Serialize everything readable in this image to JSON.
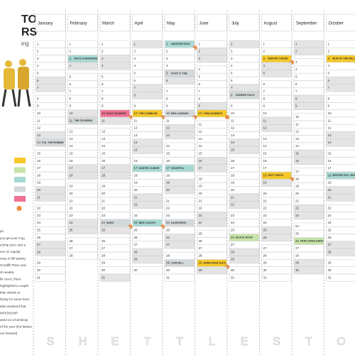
{
  "left_panel": {
    "title_lines": [
      "TON",
      "RS"
    ],
    "subtitle": "ing",
    "legend": [
      {
        "color": "#f6c828"
      },
      {
        "color": "#c6e4a8"
      },
      {
        "color": "#a8d8d2"
      },
      {
        "color": "#d3d8db"
      },
      {
        "color": "#f07292"
      },
      {
        "color": "#ef8a3c",
        "dot": true
      }
    ],
    "notes": [
      "ps",
      "you get your mug",
      "ership your card a",
      "ven on regular",
      "easy to bill paying",
      "Goodfill Place and",
      "sh weekly",
      "lle races, there",
      "highlighted a couple",
      "their details at",
      "family for some hard",
      "able weekend that",
      "MPIONSHIP",
      "ased on a handicap",
      "of the year (the fastest",
      "our forward)"
    ]
  },
  "months": [
    {
      "name": "January",
      "letter": "S",
      "days": [
        1,
        2,
        3,
        4,
        5,
        6,
        7,
        8,
        9,
        10,
        11,
        12,
        13,
        14,
        15,
        16,
        17,
        18,
        19,
        20,
        21,
        22,
        23,
        24,
        25,
        26,
        27,
        28,
        29,
        30,
        31
      ],
      "weekends": [
        6,
        7,
        13,
        14,
        20,
        21,
        27,
        28
      ],
      "events": [
        {
          "day": 14,
          "label": "FOL THE ROBBIN",
          "color": "#d3d8db"
        }
      ]
    },
    {
      "name": "February",
      "letter": "H",
      "days": [
        1,
        2,
        3,
        4,
        5,
        6,
        7,
        8,
        9,
        10,
        11,
        12,
        13,
        14,
        15,
        16,
        17,
        18,
        19,
        20,
        21,
        22,
        23,
        24,
        25,
        26,
        27,
        28
      ],
      "weekends": [
        3,
        4,
        10,
        11,
        17,
        18,
        24,
        25
      ],
      "events": [
        {
          "day": 3,
          "label": "DEVIL'S BURDENS",
          "color": "#a8d8d2"
        },
        {
          "day": 11,
          "label": "THE CELEBRA",
          "color": "#d3d8db"
        }
      ]
    },
    {
      "name": "March",
      "letter": "E",
      "days": [
        1,
        2,
        3,
        4,
        5,
        6,
        7,
        8,
        9,
        10,
        11,
        12,
        13,
        14,
        15,
        16,
        17,
        18,
        19,
        20,
        21,
        22,
        23,
        24,
        25,
        26,
        27,
        28,
        29,
        30,
        31
      ],
      "weekends": [
        3,
        4,
        10,
        11,
        17,
        18,
        24,
        25,
        31
      ],
      "events": [
        {
          "day": 10,
          "label": "EAST KILBRIDE",
          "color": "#f07292",
          "champ": true
        },
        {
          "day": 24,
          "label": "SKEG",
          "color": "#d3d8db",
          "champ": true
        }
      ]
    },
    {
      "name": "April",
      "letter": "T",
      "days": [
        1,
        2,
        3,
        4,
        5,
        6,
        7,
        8,
        9,
        10,
        11,
        12,
        13,
        14,
        15,
        16,
        17,
        18,
        19,
        20,
        21,
        22,
        23,
        24,
        25,
        26,
        27,
        28,
        29,
        30
      ],
      "weekends": [
        1,
        7,
        8,
        14,
        15,
        21,
        22,
        28,
        29
      ],
      "events": [
        {
          "day": 10,
          "label": "THE COBBLER",
          "color": "#f6c828",
          "champ": true
        },
        {
          "day": 17,
          "label": "DUNTRY JUMOR",
          "color": "#a8d8d2"
        },
        {
          "day": 24,
          "label": "BEN CLEUCH",
          "color": "#a8d8d2",
          "champ": true
        }
      ]
    },
    {
      "name": "May",
      "letter": "T",
      "days": [
        1,
        2,
        3,
        4,
        5,
        6,
        7,
        8,
        9,
        10,
        11,
        12,
        13,
        14,
        15,
        16,
        17,
        18,
        19,
        20,
        21,
        22,
        23,
        24,
        25,
        26,
        27,
        28,
        29,
        30,
        31
      ],
      "weekends": [
        5,
        6,
        12,
        13,
        19,
        20,
        26,
        27
      ],
      "events": [
        {
          "day": 1,
          "label": "HUNTERS BOG",
          "color": "#a8d8d2",
          "champ": true
        },
        {
          "day": 5,
          "label": "FOOT O' THE",
          "color": "#d3d8db"
        },
        {
          "day": 10,
          "label": "BEN LOMOND",
          "color": "#d3d8db",
          "champ": true
        },
        {
          "day": 17,
          "label": "GOATFELL",
          "color": "#a8d8d2"
        },
        {
          "day": 24,
          "label": "KILPATRICK",
          "color": "#d3d8db"
        },
        {
          "day": 29,
          "label": "COW HILL",
          "color": "#d3d8db"
        }
      ]
    },
    {
      "name": "June",
      "letter": "L",
      "days": [
        1,
        2,
        3,
        4,
        5,
        6,
        7,
        8,
        9,
        10,
        11,
        12,
        13,
        14,
        15,
        16,
        17,
        18,
        19,
        20,
        21,
        22,
        23,
        24,
        25,
        26,
        27,
        28,
        29,
        30
      ],
      "weekends": [
        2,
        3,
        9,
        10,
        16,
        17,
        23,
        24,
        30
      ],
      "events": [
        {
          "day": 10,
          "label": "TWIN SUMMITS",
          "color": "#f6c828",
          "champ": true
        },
        {
          "day": 29,
          "label": "ARROCHAR ALPS",
          "color": "#f6c828",
          "champ": true
        }
      ]
    },
    {
      "name": "July",
      "letter": "E",
      "days": [
        1,
        2,
        3,
        4,
        5,
        6,
        7,
        8,
        9,
        10,
        11,
        12,
        13,
        14,
        15,
        16,
        17,
        18,
        19,
        20,
        21,
        22,
        23,
        24,
        25,
        26,
        27,
        28,
        29,
        30,
        31
      ],
      "weekends": [
        1,
        7,
        8,
        14,
        15,
        21,
        22,
        28,
        29
      ],
      "events": [
        {
          "day": 8,
          "label": "DUNDEE HILLS",
          "color": "#d3d8db"
        },
        {
          "day": 26,
          "label": "BLACK ROCK",
          "color": "#c6e4a8"
        }
      ]
    },
    {
      "name": "August",
      "letter": "S",
      "days": [
        1,
        2,
        3,
        4,
        5,
        6,
        7,
        8,
        9,
        10,
        11,
        12,
        13,
        14,
        15,
        16,
        17,
        18,
        19,
        20,
        21,
        22,
        23,
        24,
        25,
        26,
        27,
        28,
        29,
        30,
        31
      ],
      "weekends": [
        4,
        5,
        11,
        12,
        18,
        19,
        25,
        26
      ],
      "events": [
        {
          "day": 3,
          "label": "MOFFAT CHASE",
          "color": "#f6c828",
          "champ": true
        },
        {
          "day": 18,
          "label": "RATY SMITH",
          "color": "#f6c828",
          "champ": true
        }
      ]
    },
    {
      "name": "September",
      "letter": "T",
      "days": [
        1,
        2,
        3,
        4,
        5,
        6,
        7,
        8,
        9,
        10,
        11,
        12,
        13,
        14,
        15,
        16,
        17,
        18,
        19,
        20,
        21,
        22,
        23,
        24,
        25,
        26,
        27,
        28,
        29,
        30
      ],
      "weekends": [
        1,
        2,
        8,
        9,
        15,
        16,
        22,
        23,
        29,
        30
      ],
      "events": [
        {
          "day": 26,
          "label": "FENG HIGHLANDS",
          "color": "#c6e4a8"
        }
      ]
    },
    {
      "name": "October",
      "letter": "O",
      "days": [
        1,
        2,
        3,
        4,
        5,
        6,
        7,
        8,
        9,
        10,
        11,
        12,
        13,
        14,
        15,
        16,
        17,
        18,
        19,
        20,
        21,
        22,
        23,
        24,
        25,
        26,
        27,
        28,
        29,
        30,
        31
      ],
      "weekends": [
        6,
        7,
        13,
        14,
        20,
        21,
        27,
        28
      ],
      "events": [
        {
          "day": 3,
          "label": "RUN OF THE MILL",
          "color": "#f6c828",
          "champ": true
        },
        {
          "day": 18,
          "label": "BRITISH FELL RELAY",
          "color": "#a8d8d2",
          "champ": true
        }
      ]
    }
  ]
}
